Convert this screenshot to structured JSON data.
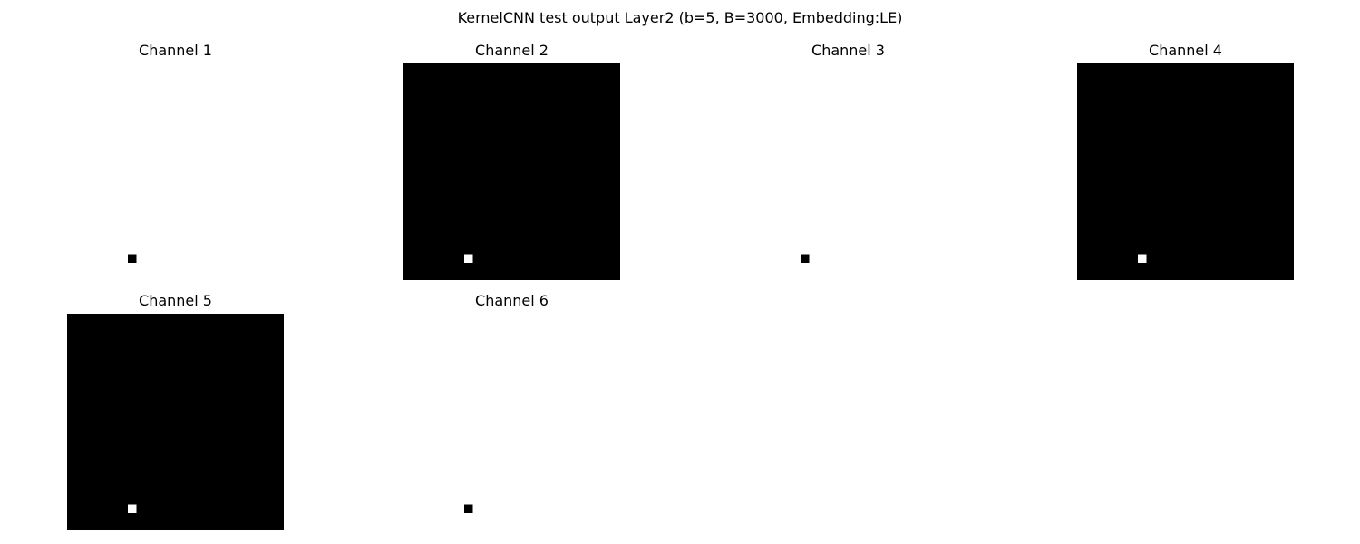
{
  "chart_data": {
    "type": "heatmap",
    "title": "KernelCNN test output Layer2 (b=5, B=3000, Embedding:LE)",
    "grid": {
      "rows": 2,
      "cols": 4
    },
    "colormap": "gray",
    "axes_visible": false,
    "panels": [
      {
        "title": "Channel 1",
        "rows": 25,
        "cols": 25,
        "background": 1,
        "highlight": {
          "row": 22,
          "col": 7,
          "value": 0
        }
      },
      {
        "title": "Channel 2",
        "rows": 25,
        "cols": 25,
        "background": 0,
        "highlight": {
          "row": 22,
          "col": 7,
          "value": 1
        }
      },
      {
        "title": "Channel 3",
        "rows": 25,
        "cols": 25,
        "background": 1,
        "highlight": {
          "row": 22,
          "col": 7,
          "value": 0
        }
      },
      {
        "title": "Channel 4",
        "rows": 25,
        "cols": 25,
        "background": 0,
        "highlight": {
          "row": 22,
          "col": 7,
          "value": 1
        }
      },
      {
        "title": "Channel 5",
        "rows": 25,
        "cols": 25,
        "background": 0,
        "highlight": {
          "row": 22,
          "col": 7,
          "value": 1
        }
      },
      {
        "title": "Channel 6",
        "rows": 25,
        "cols": 25,
        "background": 1,
        "highlight": {
          "row": 22,
          "col": 7,
          "value": 0
        }
      }
    ]
  }
}
